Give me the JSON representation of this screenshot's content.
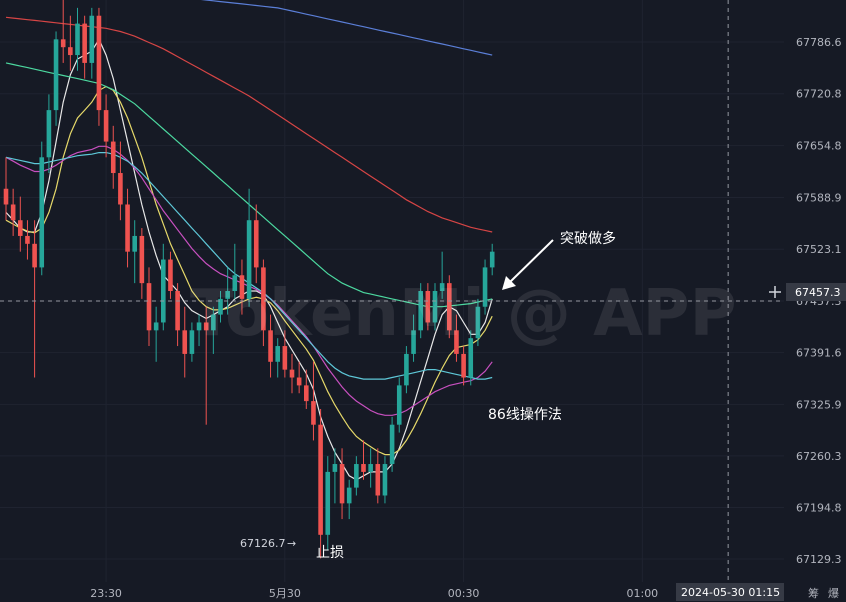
{
  "watermark": "TokenMi @ APP",
  "annotations": {
    "breakout": "突破做多",
    "method": "86线操作法",
    "stop_loss": "止损",
    "low_label": "67126.7"
  },
  "crosshair_price": "67457.3",
  "crosshair_time": "2024-05-30 01:15",
  "corner_labels": [
    "筹",
    "爆"
  ],
  "colors": {
    "up": "#26a69a",
    "down": "#ef5350",
    "ma_white": "#e8e8e8",
    "ma_yellow": "#e6d96a",
    "ma_cyan": "#5ec8d8",
    "ma_magenta": "#c850c0",
    "ma_green": "#4cd9a0",
    "ma_red": "#d64545",
    "ma_blue": "#5b7fd8"
  },
  "chart_data": {
    "type": "candlestick",
    "y_ticks": [
      "67786.6",
      "67720.8",
      "67654.8",
      "67588.9",
      "67523.1",
      "67457.3",
      "67391.6",
      "67325.9",
      "67260.3",
      "67194.8",
      "67129.3"
    ],
    "ylim": [
      67100,
      67840
    ],
    "x_ticks": [
      {
        "label": "23:30",
        "index": 14
      },
      {
        "label": "5月30",
        "index": 39
      },
      {
        "label": "00:30",
        "index": 64
      },
      {
        "label": "01:00",
        "index": 89
      }
    ],
    "crosshair_index": 101,
    "candles": [
      [
        67600,
        67640,
        67560,
        67580
      ],
      [
        67580,
        67600,
        67540,
        67560
      ],
      [
        67560,
        67590,
        67520,
        67540
      ],
      [
        67540,
        67560,
        67510,
        67530
      ],
      [
        67530,
        67560,
        67360,
        67500
      ],
      [
        67500,
        67660,
        67490,
        67640
      ],
      [
        67640,
        67720,
        67620,
        67700
      ],
      [
        67700,
        67800,
        67680,
        67790
      ],
      [
        67790,
        67840,
        67760,
        67780
      ],
      [
        67780,
        67820,
        67750,
        67770
      ],
      [
        67770,
        67830,
        67750,
        67810
      ],
      [
        67810,
        67820,
        67740,
        67760
      ],
      [
        67760,
        67830,
        67740,
        67820
      ],
      [
        67820,
        67830,
        67680,
        67700
      ],
      [
        67700,
        67720,
        67640,
        67660
      ],
      [
        67660,
        67680,
        67600,
        67620
      ],
      [
        67620,
        67660,
        67560,
        67580
      ],
      [
        67580,
        67600,
        67500,
        67520
      ],
      [
        67520,
        67560,
        67480,
        67540
      ],
      [
        67540,
        67550,
        67460,
        67480
      ],
      [
        67480,
        67500,
        67400,
        67420
      ],
      [
        67420,
        67450,
        67380,
        67430
      ],
      [
        67430,
        67530,
        67420,
        67510
      ],
      [
        67510,
        67520,
        67460,
        67470
      ],
      [
        67470,
        67480,
        67400,
        67420
      ],
      [
        67420,
        67450,
        67360,
        67390
      ],
      [
        67390,
        67430,
        67380,
        67420
      ],
      [
        67420,
        67440,
        67400,
        67430
      ],
      [
        67430,
        67450,
        67300,
        67420
      ],
      [
        67420,
        67450,
        67390,
        67440
      ],
      [
        67440,
        67470,
        67430,
        67460
      ],
      [
        67460,
        67500,
        67440,
        67470
      ],
      [
        67470,
        67530,
        67460,
        67490
      ],
      [
        67490,
        67510,
        67440,
        67460
      ],
      [
        67460,
        67600,
        67450,
        67560
      ],
      [
        67560,
        67580,
        67480,
        67500
      ],
      [
        67500,
        67510,
        67400,
        67420
      ],
      [
        67420,
        67440,
        67360,
        67380
      ],
      [
        67380,
        67410,
        67360,
        67400
      ],
      [
        67400,
        67420,
        67360,
        67370
      ],
      [
        67370,
        67390,
        67340,
        67360
      ],
      [
        67360,
        67380,
        67340,
        67350
      ],
      [
        67350,
        67370,
        67320,
        67330
      ],
      [
        67330,
        67380,
        67280,
        67300
      ],
      [
        67300,
        67320,
        67130,
        67160
      ],
      [
        67160,
        67260,
        67140,
        67240
      ],
      [
        67240,
        67270,
        67200,
        67250
      ],
      [
        67250,
        67270,
        67180,
        67200
      ],
      [
        67200,
        67230,
        67180,
        67220
      ],
      [
        67220,
        67260,
        67210,
        67250
      ],
      [
        67250,
        67280,
        67230,
        67240
      ],
      [
        67240,
        67270,
        67220,
        67250
      ],
      [
        67250,
        67270,
        67200,
        67210
      ],
      [
        67210,
        67260,
        67200,
        67250
      ],
      [
        67250,
        67310,
        67240,
        67300
      ],
      [
        67300,
        67360,
        67290,
        67350
      ],
      [
        67350,
        67400,
        67340,
        67390
      ],
      [
        67390,
        67440,
        67380,
        67420
      ],
      [
        67420,
        67480,
        67410,
        67470
      ],
      [
        67470,
        67480,
        67420,
        67430
      ],
      [
        67430,
        67480,
        67420,
        67470
      ],
      [
        67470,
        67520,
        67460,
        67480
      ],
      [
        67480,
        67490,
        67410,
        67420
      ],
      [
        67420,
        67440,
        67380,
        67390
      ],
      [
        67390,
        67400,
        67350,
        67360
      ],
      [
        67360,
        67420,
        67350,
        67410
      ],
      [
        67410,
        67460,
        67400,
        67450
      ],
      [
        67450,
        67510,
        67440,
        67500
      ],
      [
        67500,
        67530,
        67490,
        67520
      ]
    ],
    "ma_lines": [
      {
        "color_key": "ma_white",
        "values": [
          67570,
          67560,
          67550,
          67545,
          67545,
          67570,
          67610,
          67660,
          67710,
          67745,
          67765,
          67770,
          67775,
          67790,
          67770,
          67740,
          67700,
          67660,
          67620,
          67580,
          67545,
          67515,
          67490,
          67480,
          67470,
          67455,
          67445,
          67440,
          67435,
          67440,
          67445,
          67450,
          67460,
          67465,
          67470,
          67470,
          67465,
          67450,
          67430,
          67410,
          67395,
          67380,
          67365,
          67345,
          67310,
          67285,
          67265,
          67250,
          67235,
          67230,
          67235,
          67240,
          67240,
          67240,
          67250,
          67270,
          67295,
          67325,
          67355,
          67385,
          67415,
          67440,
          67450,
          67445,
          67430,
          67415,
          67415,
          67430,
          67460
        ]
      },
      {
        "color_key": "ma_yellow",
        "values": [
          67560,
          67555,
          67550,
          67546,
          67544,
          67550,
          67570,
          67600,
          67640,
          67670,
          67690,
          67700,
          67710,
          67725,
          67730,
          67725,
          67710,
          67690,
          67665,
          67640,
          67610,
          67580,
          67555,
          67530,
          67510,
          67490,
          67470,
          67458,
          67450,
          67446,
          67446,
          67448,
          67452,
          67456,
          67460,
          67462,
          67460,
          67455,
          67445,
          67432,
          67420,
          67408,
          67396,
          67382,
          67362,
          67342,
          67325,
          67310,
          67296,
          67285,
          67278,
          67272,
          67266,
          67262,
          67262,
          67268,
          67280,
          67296,
          67314,
          67334,
          67354,
          67372,
          67388,
          67398,
          67400,
          67402,
          67408,
          67420,
          67438
        ]
      },
      {
        "color_key": "ma_magenta",
        "values": [
          67640,
          67635,
          67630,
          67626,
          67622,
          67622,
          67625,
          67630,
          67636,
          67642,
          67646,
          67648,
          67650,
          67654,
          67654,
          67650,
          67644,
          67636,
          67626,
          67614,
          67600,
          67586,
          67572,
          67560,
          67548,
          67536,
          67524,
          67514,
          67505,
          67498,
          67492,
          67488,
          67484,
          67480,
          67476,
          67472,
          67466,
          67460,
          67452,
          67442,
          67432,
          67422,
          67412,
          67400,
          67386,
          67372,
          67360,
          67348,
          67338,
          67330,
          67324,
          67318,
          67314,
          67312,
          67312,
          67314,
          67318,
          67324,
          67330,
          67336,
          67342,
          67346,
          67350,
          67352,
          67354,
          67356,
          67360,
          67368,
          67380
        ]
      },
      {
        "color_key": "ma_cyan",
        "values": [
          67640,
          67638,
          67636,
          67634,
          67632,
          67632,
          67634,
          67636,
          67638,
          67640,
          67642,
          67643,
          67644,
          67646,
          67646,
          67644,
          67640,
          67635,
          67628,
          67620,
          67610,
          67600,
          67590,
          67580,
          67570,
          67560,
          67550,
          67540,
          67530,
          67520,
          67510,
          67500,
          67492,
          67486,
          67480,
          67474,
          67468,
          67460,
          67450,
          67440,
          67430,
          67420,
          67410,
          67400,
          67390,
          67380,
          67372,
          67366,
          67362,
          67360,
          67358,
          67358,
          67358,
          67358,
          67360,
          67362,
          67364,
          67366,
          67368,
          67370,
          67370,
          67368,
          67366,
          67364,
          67362,
          67360,
          67358,
          67358,
          67360
        ]
      },
      {
        "color_key": "ma_green",
        "values": [
          67760,
          67758,
          67756,
          67754,
          67752,
          67750,
          67748,
          67746,
          67744,
          67742,
          67740,
          67738,
          67736,
          67734,
          67730,
          67726,
          67720,
          67714,
          67708,
          67700,
          67692,
          67684,
          67676,
          67668,
          67660,
          67652,
          67644,
          67636,
          67628,
          67620,
          67612,
          67604,
          67596,
          67588,
          67580,
          67572,
          67564,
          67556,
          67548,
          67540,
          67532,
          67524,
          67516,
          67508,
          67500,
          67492,
          67486,
          67480,
          67476,
          67472,
          67468,
          67466,
          67464,
          67462,
          67460,
          67458,
          67456,
          67454,
          67452,
          67450,
          67450,
          67450,
          67451,
          67452,
          67453,
          67454,
          67456,
          67458,
          67460
        ]
      },
      {
        "color_key": "ma_red",
        "values": [
          67818,
          67817,
          67816,
          67815,
          67814,
          67813,
          67812,
          67811,
          67810,
          67809,
          67808,
          67807,
          67806,
          67805,
          67804,
          67802,
          67800,
          67797,
          67794,
          67790,
          67786,
          67782,
          67778,
          67773,
          67768,
          67763,
          67758,
          67753,
          67748,
          67743,
          67738,
          67733,
          67728,
          67723,
          67718,
          67712,
          67706,
          67700,
          67694,
          67688,
          67682,
          67676,
          67670,
          67664,
          67658,
          67652,
          67646,
          67640,
          67634,
          67628,
          67622,
          67616,
          67610,
          67604,
          67598,
          67592,
          67586,
          67581,
          67576,
          67571,
          67567,
          67563,
          67560,
          67557,
          67554,
          67551,
          67549,
          67547,
          67545
        ]
      },
      {
        "color_key": "ma_blue",
        "values": [
          null,
          null,
          null,
          null,
          null,
          null,
          null,
          null,
          null,
          null,
          null,
          null,
          null,
          null,
          null,
          null,
          null,
          null,
          null,
          null,
          null,
          null,
          null,
          null,
          null,
          null,
          67842,
          67841,
          67840,
          67839,
          67838,
          67837,
          67836,
          67835,
          67834,
          67833,
          67832,
          67831,
          67830,
          67828,
          67826,
          67824,
          67822,
          67820,
          67818,
          67816,
          67814,
          67812,
          67810,
          67808,
          67806,
          67804,
          67802,
          67800,
          67798,
          67796,
          67794,
          67792,
          67790,
          67788,
          67786,
          67784,
          67782,
          67780,
          67778,
          67776,
          67774,
          67772,
          67770
        ]
      }
    ]
  }
}
